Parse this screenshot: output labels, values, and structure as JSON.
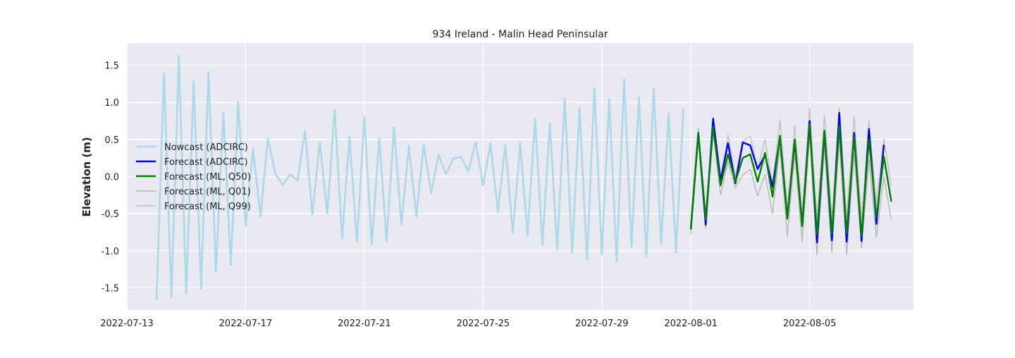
{
  "chart_data": {
    "type": "line",
    "title": "934 Ireland - Malin Head Peninsular",
    "xlabel": "",
    "ylabel": "Elevation (m)",
    "xlim": [
      "2022-07-13T00:00",
      "2022-08-08T12:00"
    ],
    "ylim": [
      -1.8,
      1.8
    ],
    "x_ticks": [
      "2022-07-13",
      "2022-07-17",
      "2022-07-21",
      "2022-07-25",
      "2022-07-29",
      "2022-08-01",
      "2022-08-05"
    ],
    "y_ticks": [
      "1.5",
      "1.0",
      "0.5",
      "0.0",
      "-0.5",
      "-1.0",
      "-1.5"
    ],
    "y_tick_values": [
      1.5,
      1.0,
      0.5,
      0.0,
      -0.5,
      -1.0,
      -1.5
    ],
    "grid": true,
    "legend_position": "center-left",
    "series": [
      {
        "name": "Nowcast (ADCIRC)",
        "color": "#add8e6",
        "x_start": "2022-07-14T00:00",
        "x_step_hours": 6,
        "values": [
          -1.65,
          1.39,
          -1.63,
          1.63,
          -1.58,
          1.28,
          -1.51,
          1.41,
          -1.29,
          0.86,
          -1.19,
          1.0,
          -0.67,
          0.38,
          -0.54,
          0.51,
          0.04,
          -0.11,
          0.03,
          -0.05,
          0.62,
          -0.51,
          0.46,
          -0.5,
          0.9,
          -0.83,
          0.53,
          -0.88,
          0.8,
          -0.92,
          0.52,
          -0.87,
          0.66,
          -0.65,
          0.41,
          -0.54,
          0.43,
          -0.23,
          0.3,
          0.03,
          0.24,
          0.27,
          0.07,
          0.46,
          -0.12,
          0.45,
          -0.48,
          0.43,
          -0.76,
          0.45,
          -0.8,
          0.78,
          -0.92,
          0.72,
          -0.98,
          1.05,
          -1.03,
          0.92,
          -1.12,
          1.19,
          -1.05,
          1.04,
          -1.15,
          1.31,
          -0.95,
          1.07,
          -1.08,
          1.18,
          -0.91,
          0.85,
          -1.02,
          0.91
        ]
      },
      {
        "name": "Forecast (ADCIRC)",
        "color": "#0000ee",
        "x_start": "2022-08-01T00:00",
        "x_step_hours": 6,
        "values": [
          -0.7,
          0.59,
          -0.65,
          0.78,
          -0.05,
          0.45,
          -0.09,
          0.46,
          0.42,
          0.1,
          0.29,
          -0.14,
          0.53,
          -0.56,
          0.47,
          -0.66,
          0.75,
          -0.89,
          0.6,
          -0.86,
          0.86,
          -0.88,
          0.59,
          -0.87,
          0.64,
          -0.64,
          0.42
        ]
      },
      {
        "name": "Forecast (ML, Q50)",
        "color": "#008000",
        "x_start": "2022-08-01T00:00",
        "x_step_hours": 6,
        "values": [
          -0.69,
          0.58,
          -0.58,
          0.67,
          -0.12,
          0.3,
          -0.07,
          0.25,
          0.3,
          -0.07,
          0.32,
          -0.27,
          0.55,
          -0.57,
          0.5,
          -0.67,
          0.7,
          -0.78,
          0.62,
          -0.77,
          0.68,
          -0.76,
          0.53,
          -0.8,
          0.5,
          -0.55,
          0.27,
          -0.33
        ]
      },
      {
        "name": "Forecast (ML, Q01)",
        "color": "#b7b7b7",
        "x_start": "2022-08-01T00:00",
        "x_step_hours": 6,
        "values": [
          -0.78,
          0.5,
          -0.7,
          0.6,
          -0.25,
          0.2,
          -0.15,
          0.02,
          0.1,
          -0.26,
          0.03,
          -0.5,
          0.4,
          -0.8,
          0.3,
          -0.88,
          0.55,
          -1.06,
          0.4,
          -1.03,
          0.48,
          -1.05,
          0.3,
          -0.96,
          0.22,
          -0.82,
          0.0,
          -0.58
        ]
      },
      {
        "name": "Forecast (ML, Q99)",
        "color": "#c0c0c0",
        "x_start": "2022-08-01T00:00",
        "x_step_hours": 6,
        "values": [
          -0.6,
          0.66,
          -0.48,
          0.8,
          -0.05,
          0.56,
          0.0,
          0.47,
          0.55,
          0.1,
          0.5,
          -0.1,
          0.77,
          -0.42,
          0.69,
          -0.5,
          0.92,
          -0.58,
          0.83,
          -0.56,
          0.93,
          -0.55,
          0.81,
          -0.58,
          0.75,
          -0.36,
          0.51,
          -0.12
        ]
      }
    ]
  }
}
